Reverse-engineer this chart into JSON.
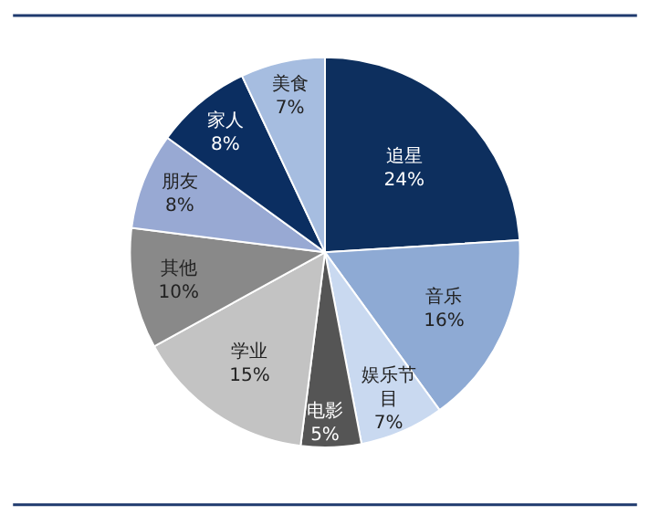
{
  "chart_data": {
    "type": "pie",
    "categories": [
      "追星",
      "音乐",
      "娱乐节目",
      "电影",
      "学业",
      "其他",
      "朋友",
      "家人",
      "美食"
    ],
    "values": [
      24,
      16,
      7,
      5,
      15,
      10,
      8,
      8,
      7
    ],
    "value_labels": [
      "24%",
      "16%",
      "7%",
      "5%",
      "15%",
      "10%",
      "8%",
      "8%",
      "7%"
    ],
    "colors": [
      "#0d2f5e",
      "#8eaad4",
      "#c9d9f0",
      "#555555",
      "#c3c3c3",
      "#898989",
      "#98a9d3",
      "#0b2e61",
      "#a6bde0"
    ],
    "legend": false
  }
}
